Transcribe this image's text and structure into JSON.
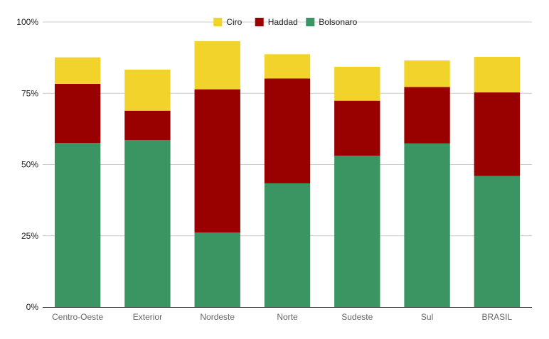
{
  "chart_data": {
    "type": "bar",
    "stacked": true,
    "title": "",
    "xlabel": "",
    "ylabel": "",
    "ylim": [
      0,
      1
    ],
    "y_ticks": [
      "0%",
      "25%",
      "50%",
      "75%",
      "100%"
    ],
    "grid": true,
    "legend_position": "top",
    "categories": [
      "Centro-Oeste",
      "Exterior",
      "Nordeste",
      "Norte",
      "Sudeste",
      "Sul",
      "BRASIL"
    ],
    "series": [
      {
        "name": "Bolsonaro",
        "color": "#3a9562",
        "values": [
          0.576,
          0.586,
          0.261,
          0.434,
          0.531,
          0.574,
          0.46
        ]
      },
      {
        "name": "Haddad",
        "color": "#990000",
        "values": [
          0.207,
          0.103,
          0.503,
          0.368,
          0.193,
          0.198,
          0.293
        ]
      },
      {
        "name": "Ciro",
        "color": "#f1d32b",
        "values": [
          0.093,
          0.144,
          0.169,
          0.085,
          0.119,
          0.093,
          0.125
        ]
      }
    ],
    "legend_order": [
      "Ciro",
      "Haddad",
      "Bolsonaro"
    ]
  }
}
